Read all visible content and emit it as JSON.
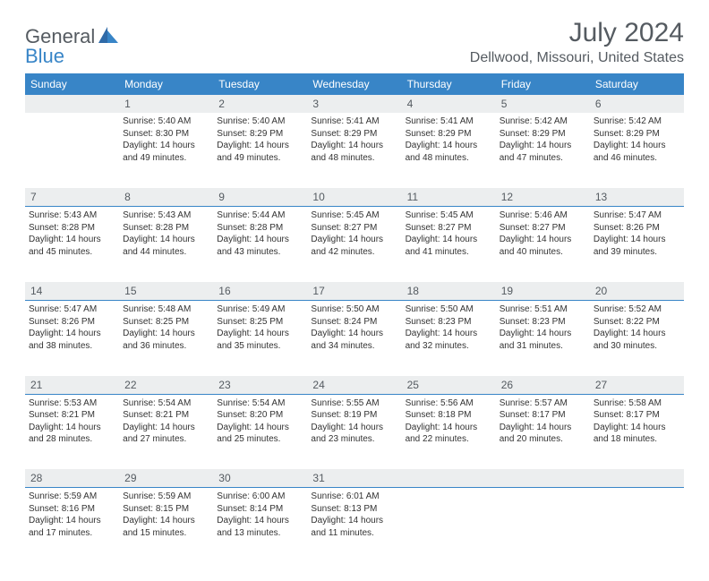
{
  "brand": {
    "part1": "General",
    "part2": "Blue"
  },
  "title": "July 2024",
  "location": "Dellwood, Missouri, United States",
  "day_headers": [
    "Sunday",
    "Monday",
    "Tuesday",
    "Wednesday",
    "Thursday",
    "Friday",
    "Saturday"
  ],
  "colors": {
    "accent": "#3885c7",
    "text": "#555b61",
    "grid_bg": "#eceeef"
  },
  "weeks": [
    {
      "nums": [
        "",
        "1",
        "2",
        "3",
        "4",
        "5",
        "6"
      ],
      "cells": [
        null,
        {
          "sunrise": "Sunrise: 5:40 AM",
          "sunset": "Sunset: 8:30 PM",
          "daylight": "Daylight: 14 hours and 49 minutes."
        },
        {
          "sunrise": "Sunrise: 5:40 AM",
          "sunset": "Sunset: 8:29 PM",
          "daylight": "Daylight: 14 hours and 49 minutes."
        },
        {
          "sunrise": "Sunrise: 5:41 AM",
          "sunset": "Sunset: 8:29 PM",
          "daylight": "Daylight: 14 hours and 48 minutes."
        },
        {
          "sunrise": "Sunrise: 5:41 AM",
          "sunset": "Sunset: 8:29 PM",
          "daylight": "Daylight: 14 hours and 48 minutes."
        },
        {
          "sunrise": "Sunrise: 5:42 AM",
          "sunset": "Sunset: 8:29 PM",
          "daylight": "Daylight: 14 hours and 47 minutes."
        },
        {
          "sunrise": "Sunrise: 5:42 AM",
          "sunset": "Sunset: 8:29 PM",
          "daylight": "Daylight: 14 hours and 46 minutes."
        }
      ]
    },
    {
      "nums": [
        "7",
        "8",
        "9",
        "10",
        "11",
        "12",
        "13"
      ],
      "cells": [
        {
          "sunrise": "Sunrise: 5:43 AM",
          "sunset": "Sunset: 8:28 PM",
          "daylight": "Daylight: 14 hours and 45 minutes."
        },
        {
          "sunrise": "Sunrise: 5:43 AM",
          "sunset": "Sunset: 8:28 PM",
          "daylight": "Daylight: 14 hours and 44 minutes."
        },
        {
          "sunrise": "Sunrise: 5:44 AM",
          "sunset": "Sunset: 8:28 PM",
          "daylight": "Daylight: 14 hours and 43 minutes."
        },
        {
          "sunrise": "Sunrise: 5:45 AM",
          "sunset": "Sunset: 8:27 PM",
          "daylight": "Daylight: 14 hours and 42 minutes."
        },
        {
          "sunrise": "Sunrise: 5:45 AM",
          "sunset": "Sunset: 8:27 PM",
          "daylight": "Daylight: 14 hours and 41 minutes."
        },
        {
          "sunrise": "Sunrise: 5:46 AM",
          "sunset": "Sunset: 8:27 PM",
          "daylight": "Daylight: 14 hours and 40 minutes."
        },
        {
          "sunrise": "Sunrise: 5:47 AM",
          "sunset": "Sunset: 8:26 PM",
          "daylight": "Daylight: 14 hours and 39 minutes."
        }
      ]
    },
    {
      "nums": [
        "14",
        "15",
        "16",
        "17",
        "18",
        "19",
        "20"
      ],
      "cells": [
        {
          "sunrise": "Sunrise: 5:47 AM",
          "sunset": "Sunset: 8:26 PM",
          "daylight": "Daylight: 14 hours and 38 minutes."
        },
        {
          "sunrise": "Sunrise: 5:48 AM",
          "sunset": "Sunset: 8:25 PM",
          "daylight": "Daylight: 14 hours and 36 minutes."
        },
        {
          "sunrise": "Sunrise: 5:49 AM",
          "sunset": "Sunset: 8:25 PM",
          "daylight": "Daylight: 14 hours and 35 minutes."
        },
        {
          "sunrise": "Sunrise: 5:50 AM",
          "sunset": "Sunset: 8:24 PM",
          "daylight": "Daylight: 14 hours and 34 minutes."
        },
        {
          "sunrise": "Sunrise: 5:50 AM",
          "sunset": "Sunset: 8:23 PM",
          "daylight": "Daylight: 14 hours and 32 minutes."
        },
        {
          "sunrise": "Sunrise: 5:51 AM",
          "sunset": "Sunset: 8:23 PM",
          "daylight": "Daylight: 14 hours and 31 minutes."
        },
        {
          "sunrise": "Sunrise: 5:52 AM",
          "sunset": "Sunset: 8:22 PM",
          "daylight": "Daylight: 14 hours and 30 minutes."
        }
      ]
    },
    {
      "nums": [
        "21",
        "22",
        "23",
        "24",
        "25",
        "26",
        "27"
      ],
      "cells": [
        {
          "sunrise": "Sunrise: 5:53 AM",
          "sunset": "Sunset: 8:21 PM",
          "daylight": "Daylight: 14 hours and 28 minutes."
        },
        {
          "sunrise": "Sunrise: 5:54 AM",
          "sunset": "Sunset: 8:21 PM",
          "daylight": "Daylight: 14 hours and 27 minutes."
        },
        {
          "sunrise": "Sunrise: 5:54 AM",
          "sunset": "Sunset: 8:20 PM",
          "daylight": "Daylight: 14 hours and 25 minutes."
        },
        {
          "sunrise": "Sunrise: 5:55 AM",
          "sunset": "Sunset: 8:19 PM",
          "daylight": "Daylight: 14 hours and 23 minutes."
        },
        {
          "sunrise": "Sunrise: 5:56 AM",
          "sunset": "Sunset: 8:18 PM",
          "daylight": "Daylight: 14 hours and 22 minutes."
        },
        {
          "sunrise": "Sunrise: 5:57 AM",
          "sunset": "Sunset: 8:17 PM",
          "daylight": "Daylight: 14 hours and 20 minutes."
        },
        {
          "sunrise": "Sunrise: 5:58 AM",
          "sunset": "Sunset: 8:17 PM",
          "daylight": "Daylight: 14 hours and 18 minutes."
        }
      ]
    },
    {
      "nums": [
        "28",
        "29",
        "30",
        "31",
        "",
        "",
        ""
      ],
      "cells": [
        {
          "sunrise": "Sunrise: 5:59 AM",
          "sunset": "Sunset: 8:16 PM",
          "daylight": "Daylight: 14 hours and 17 minutes."
        },
        {
          "sunrise": "Sunrise: 5:59 AM",
          "sunset": "Sunset: 8:15 PM",
          "daylight": "Daylight: 14 hours and 15 minutes."
        },
        {
          "sunrise": "Sunrise: 6:00 AM",
          "sunset": "Sunset: 8:14 PM",
          "daylight": "Daylight: 14 hours and 13 minutes."
        },
        {
          "sunrise": "Sunrise: 6:01 AM",
          "sunset": "Sunset: 8:13 PM",
          "daylight": "Daylight: 14 hours and 11 minutes."
        },
        null,
        null,
        null
      ]
    }
  ]
}
